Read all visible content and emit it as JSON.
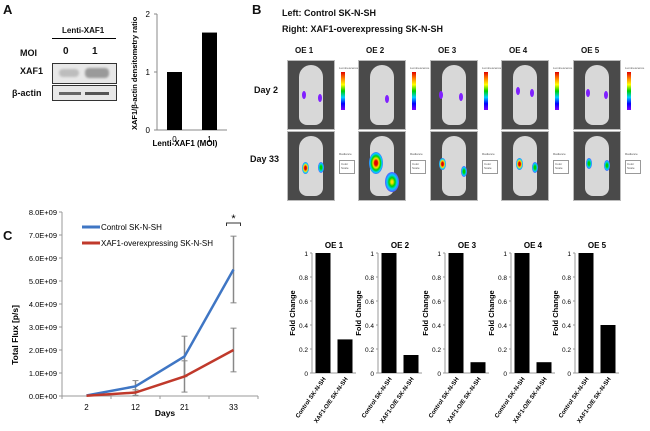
{
  "panels": {
    "A": {
      "letter": "A",
      "western_blot": {
        "header": "Lenti-XAF1",
        "moi_label": "MOI",
        "moi_values": [
          "0",
          "1"
        ],
        "rows": [
          "XAF1",
          "β-actin"
        ]
      }
    },
    "B": {
      "letter": "B",
      "legend_left": "Left: Control SK-N-SH",
      "legend_right": "Right: XAF1-overexpressing SK-N-SH",
      "columns": [
        "OE 1",
        "OE 2",
        "OE 3",
        "OE 4",
        "OE 5"
      ],
      "rows": [
        "Day 2",
        "Day 33"
      ],
      "scale_label": "Luminescence",
      "radiance_label": "Radiance",
      "color_scale_label": "Color Scale"
    },
    "C": {
      "letter": "C"
    }
  },
  "chart_data": [
    {
      "id": "densitometry",
      "type": "bar",
      "title": "",
      "categories": [
        "0",
        "1"
      ],
      "values": [
        1.0,
        1.68
      ],
      "xlabel": "Lenti-XAF1 (MOI)",
      "ylabel": "XAF1/β-actin densitometry ratio",
      "ylim": [
        0,
        2
      ],
      "yticks": [
        "0",
        "1",
        "2"
      ],
      "bar_color": "#000000"
    },
    {
      "id": "total-flux",
      "type": "line",
      "x": [
        "2",
        "12",
        "21",
        "33"
      ],
      "xlabel": "Days",
      "ylabel": "Total Flux [p/s]",
      "ylim": [
        0,
        8000000000.0
      ],
      "yticks": [
        "0.0E+00",
        "1.0E+09",
        "2.0E+09",
        "3.0E+09",
        "4.0E+09",
        "5.0E+09",
        "6.0E+09",
        "7.0E+09",
        "8.0E+09"
      ],
      "legend_position": "top-left",
      "significance_marker": "*",
      "series": [
        {
          "name": "Control SK-N-SH",
          "color": "#3f76c4",
          "values": [
            20000000.0,
            420000000.0,
            1720000000.0,
            5500000000.0
          ],
          "error": [
            0.0,
            250000000.0,
            880000000.0,
            1450000000.0
          ]
        },
        {
          "name": "XAF1-overexpressing SK-N-SH",
          "color": "#c0392b",
          "values": [
            10000000.0,
            150000000.0,
            850000000.0,
            2000000000.0
          ],
          "error": [
            0.0,
            120000000.0,
            680000000.0,
            950000000.0
          ]
        }
      ]
    },
    {
      "id": "fold-change",
      "type": "bar",
      "ylabel": "Fold Change",
      "ylim": [
        0,
        1
      ],
      "yticks": [
        "0",
        "0.2",
        "0.4",
        "0.6",
        "0.8",
        "1"
      ],
      "categories": [
        "Control SK-N-SH",
        "XAF1-O/E SK-N-SH"
      ],
      "subplots": [
        {
          "title": "OE 1",
          "values": [
            1.0,
            0.28
          ]
        },
        {
          "title": "OE 2",
          "values": [
            1.0,
            0.15
          ]
        },
        {
          "title": "OE 3",
          "values": [
            1.0,
            0.09
          ]
        },
        {
          "title": "OE 4",
          "values": [
            1.0,
            0.09
          ]
        },
        {
          "title": "OE 5",
          "values": [
            1.0,
            0.4
          ]
        }
      ],
      "bar_color": "#000000"
    }
  ]
}
